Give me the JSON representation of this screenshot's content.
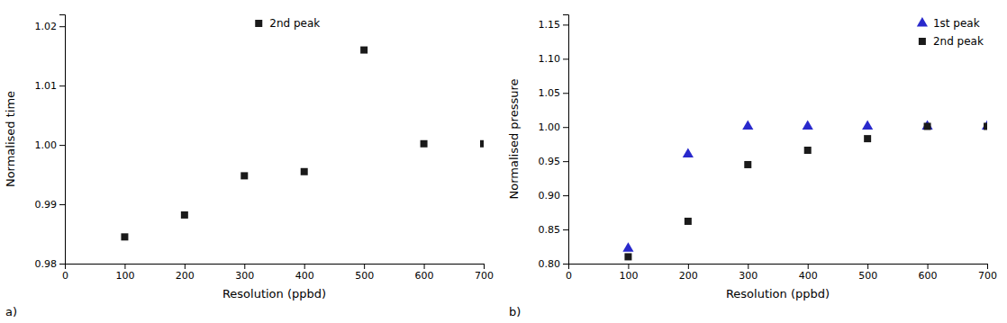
{
  "chart_data": [
    {
      "type": "scatter",
      "x": [
        100,
        200,
        300,
        400,
        500,
        600,
        700
      ],
      "series": [
        {
          "name": "2nd peak",
          "color": "#1a1a1a",
          "marker": "square",
          "values": [
            0.9845,
            0.9882,
            0.9948,
            0.9955,
            1.016,
            1.0002,
            1.0002
          ]
        }
      ],
      "xlabel": "Resolution (ppbd)",
      "ylabel": "Normalised time",
      "xlim": [
        0,
        700
      ],
      "ylim": [
        0.98,
        1.022
      ],
      "xticks": [
        0,
        100,
        200,
        300,
        400,
        500,
        600,
        700
      ],
      "yticks": [
        0.98,
        0.99,
        {
          "value": 1.0,
          "label": "1.00"
        },
        1.01,
        1.02
      ],
      "annotation": "a)",
      "legend": "top",
      "grid": false
    },
    {
      "type": "scatter",
      "x": [
        100,
        200,
        300,
        400,
        500,
        600,
        700
      ],
      "series": [
        {
          "name": "1st peak",
          "color": "#2929cc",
          "marker": "triangle",
          "values": [
            0.822,
            0.96,
            1.001,
            1.001,
            1.001,
            1.001,
            1.001
          ]
        },
        {
          "name": "2nd peak",
          "color": "#1a1a1a",
          "marker": "square",
          "values": [
            0.81,
            0.862,
            0.945,
            0.966,
            0.983,
            1.001,
            1.001
          ]
        }
      ],
      "xlabel": "Resolution (ppbd)",
      "ylabel": "Normalised pressure",
      "xlim": [
        0,
        700
      ],
      "ylim": [
        0.8,
        1.165
      ],
      "xticks": [
        0,
        100,
        200,
        300,
        400,
        500,
        600,
        700
      ],
      "yticks": [
        {
          "value": 0.8,
          "label": "0.80"
        },
        0.85,
        {
          "value": 0.9,
          "label": "0.90"
        },
        0.95,
        {
          "value": 1.0,
          "label": "1.00"
        },
        1.05,
        {
          "value": 1.1,
          "label": "1.10"
        },
        1.15
      ],
      "annotation": "b)",
      "legend": "top-right",
      "grid": false
    }
  ]
}
